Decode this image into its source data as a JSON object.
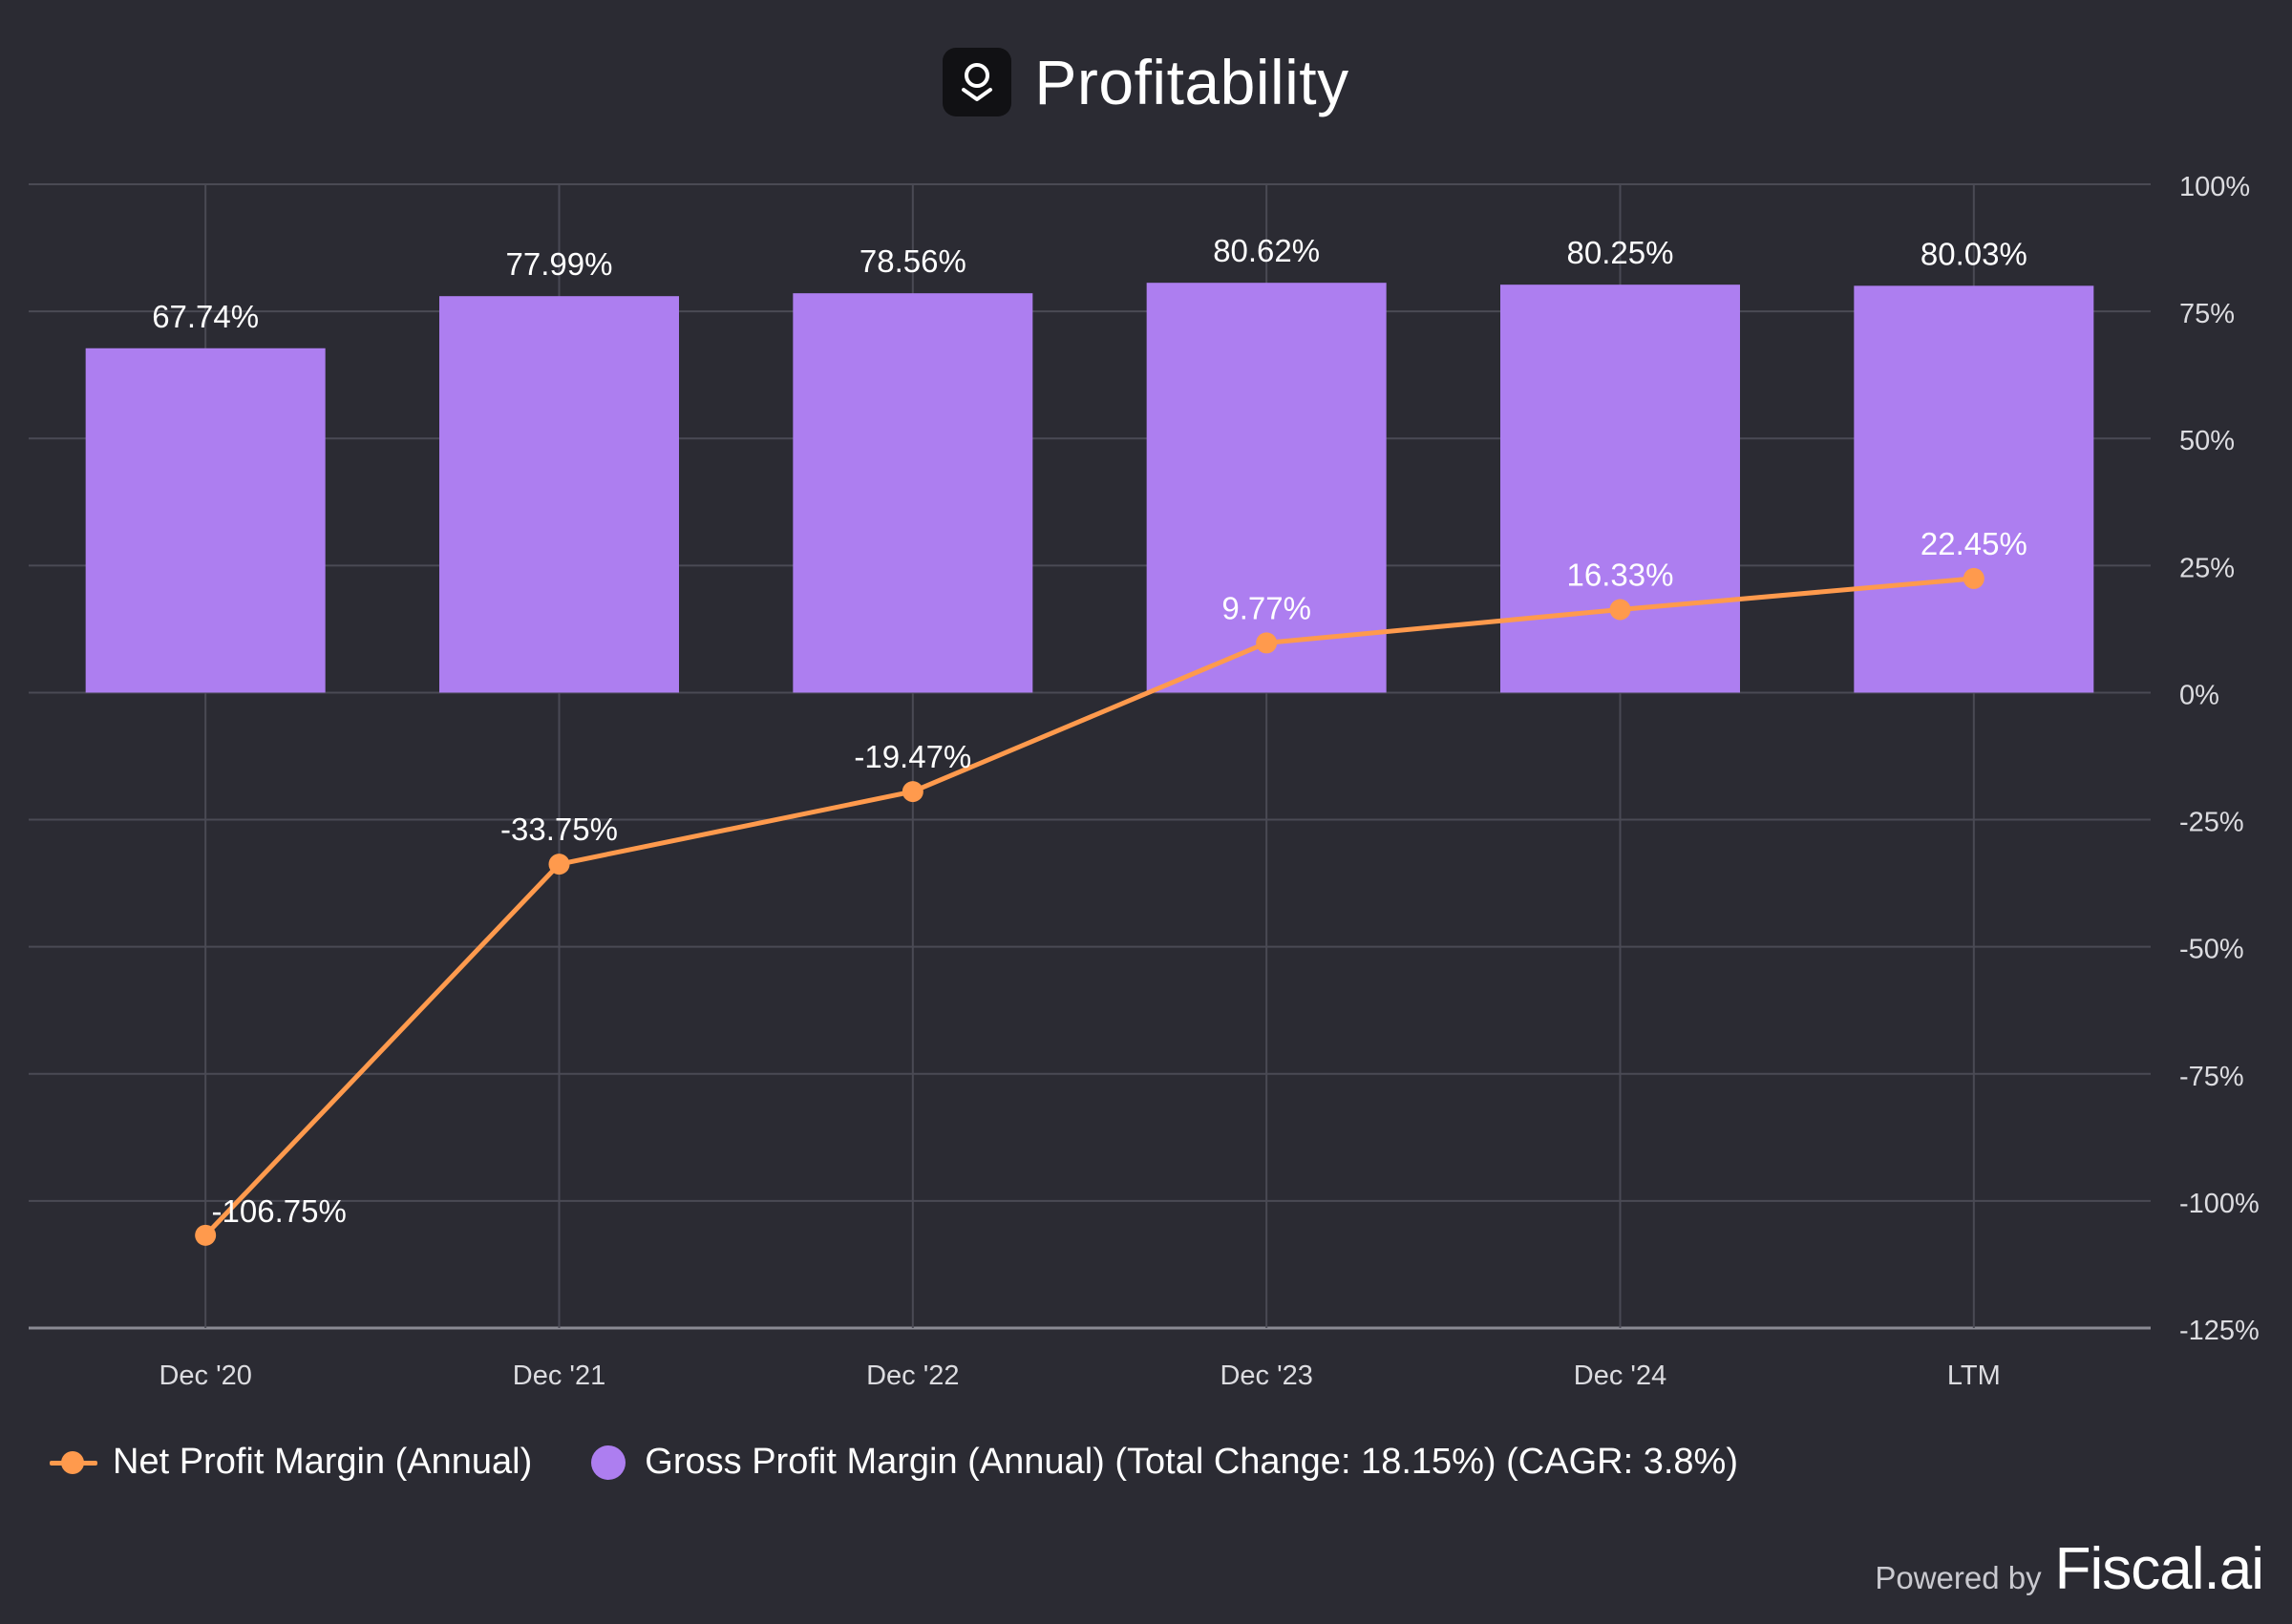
{
  "header": {
    "title": "Profitability",
    "logo_icon": "ring-logo-icon"
  },
  "chart_data": {
    "type": "bar+line",
    "title": "Profitability",
    "categories": [
      "Dec '20",
      "Dec '21",
      "Dec '22",
      "Dec '23",
      "Dec '24",
      "LTM"
    ],
    "series": [
      {
        "name": "Gross Profit Margin (Annual)",
        "type": "bar",
        "values": [
          67.74,
          77.99,
          78.56,
          80.62,
          80.25,
          80.03
        ],
        "labels": [
          "67.74%",
          "77.99%",
          "78.56%",
          "80.62%",
          "80.25%",
          "80.03%"
        ]
      },
      {
        "name": "Net Profit Margin (Annual)",
        "type": "line",
        "values": [
          -106.75,
          -33.75,
          -19.47,
          9.77,
          16.33,
          22.45
        ],
        "labels": [
          "-106.75%",
          "-33.75%",
          "-19.47%",
          "9.77%",
          "16.33%",
          "22.45%"
        ]
      }
    ],
    "y_axis": {
      "position": "right",
      "ylim": [
        -125,
        100
      ],
      "ticks": [
        100,
        75,
        50,
        25,
        0,
        -25,
        -50,
        -75,
        -100,
        -125
      ],
      "tick_labels": [
        "100%",
        "75%",
        "50%",
        "25%",
        "0%",
        "-25%",
        "-50%",
        "-75%",
        "-100%",
        "-125%"
      ]
    },
    "grid": true,
    "legend_position": "bottom-left",
    "colors": {
      "bar": "#ad7ef0",
      "line": "#ff9a4d",
      "background": "#2b2b33",
      "grid": "#4a4a54"
    }
  },
  "legend": {
    "items": [
      {
        "label": "Net Profit Margin (Annual)",
        "swatch": "line-marker"
      },
      {
        "label": "Gross Profit Margin (Annual) (Total Change: 18.15%) (CAGR: 3.8%)",
        "swatch": "dot"
      }
    ]
  },
  "footer": {
    "powered_by": "Powered by",
    "brand": "Fiscal.ai"
  }
}
